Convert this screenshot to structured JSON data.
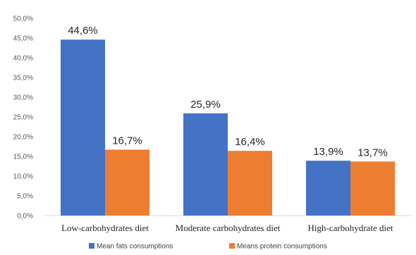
{
  "chart_data": {
    "type": "bar",
    "categories": [
      "Low-carbohydrates diet",
      "Moderate carbohydrates diet",
      "High-carbohydrate diet"
    ],
    "series": [
      {
        "name": "Mean fats consumptions",
        "values": [
          44.6,
          25.9,
          13.9
        ],
        "labels": [
          "44,6%",
          "25,9%",
          "13,9%"
        ],
        "color": "#4472C4"
      },
      {
        "name": "Means protein consumptions",
        "values": [
          16.7,
          16.4,
          13.7
        ],
        "labels": [
          "16,7%",
          "16,4%",
          "13,7%"
        ],
        "color": "#ED7D31"
      }
    ],
    "y_ticks": [
      "0,0%",
      "5,0%",
      "10,0%",
      "15,0%",
      "20,0%",
      "25,0%",
      "30,0%",
      "35,0%",
      "40,0%",
      "45,0%",
      "50,0%"
    ],
    "ylim": [
      0,
      50
    ],
    "grid": false,
    "legend_position": "bottom"
  }
}
